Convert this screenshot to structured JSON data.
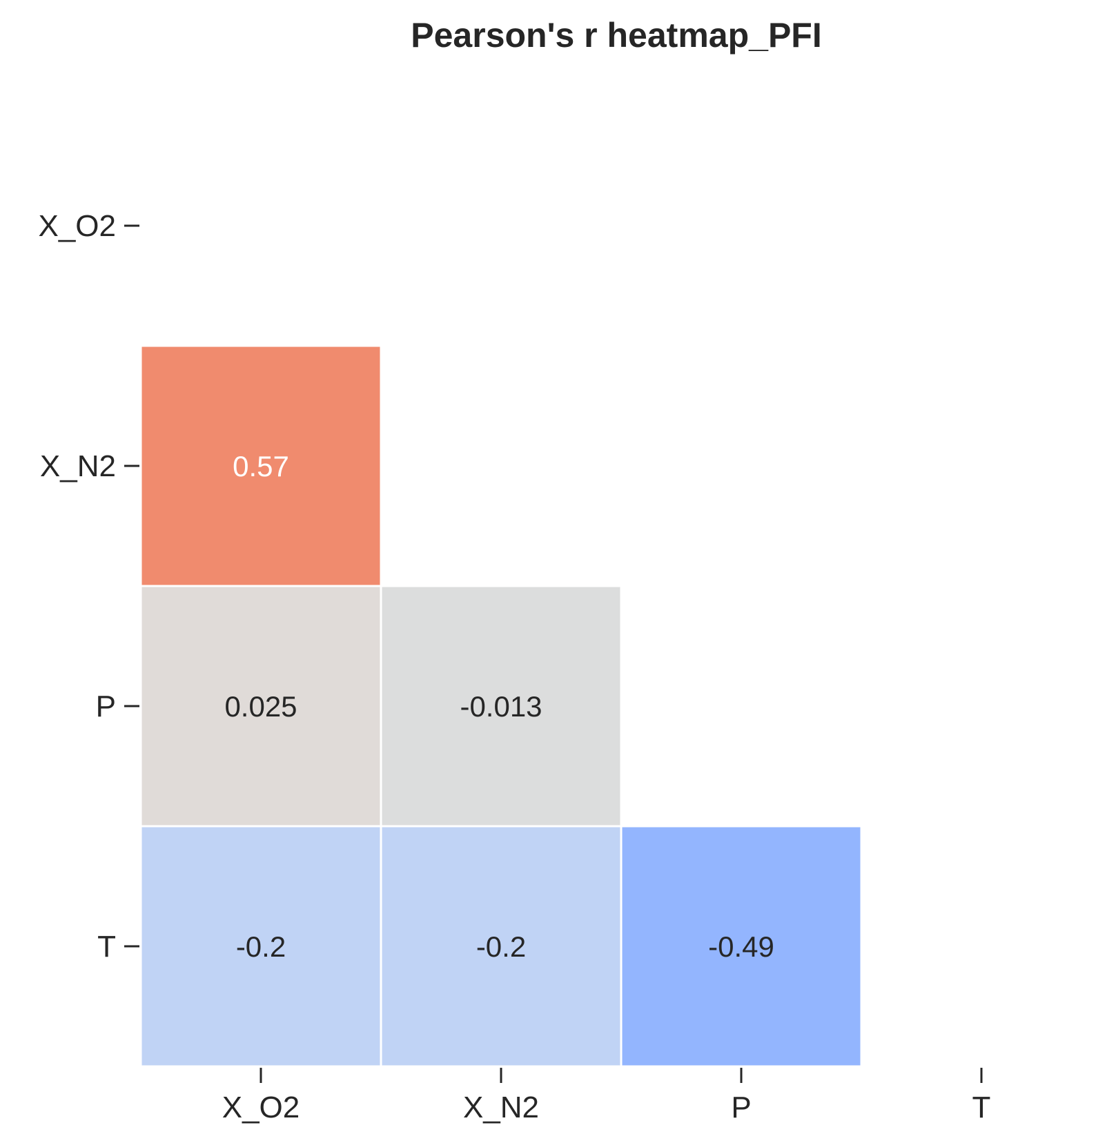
{
  "chart_data": {
    "type": "heatmap",
    "title": "Pearson's r heatmap_PFI",
    "xlabel": "",
    "ylabel": "",
    "x_categories": [
      "X_O2",
      "X_N2",
      "P",
      "T"
    ],
    "y_categories": [
      "X_O2",
      "X_N2",
      "P",
      "T"
    ],
    "mask": "upper-triangle-including-diagonal",
    "colormap": "coolwarm",
    "vmin": -1,
    "vmax": 1,
    "colorbar": false,
    "cells": [
      {
        "row": 1,
        "col": 0,
        "value": 0.57,
        "label": "0.57",
        "color": "#f08b6e",
        "text_color": "#ffffff"
      },
      {
        "row": 2,
        "col": 0,
        "value": 0.025,
        "label": "0.025",
        "color": "#e0dbd8",
        "text_color": "#262626"
      },
      {
        "row": 2,
        "col": 1,
        "value": -0.013,
        "label": "-0.013",
        "color": "#dcdddd",
        "text_color": "#262626"
      },
      {
        "row": 3,
        "col": 0,
        "value": -0.2,
        "label": "-0.2",
        "color": "#c0d3f5",
        "text_color": "#262626"
      },
      {
        "row": 3,
        "col": 1,
        "value": -0.2,
        "label": "-0.2",
        "color": "#c0d3f5",
        "text_color": "#262626"
      },
      {
        "row": 3,
        "col": 2,
        "value": -0.49,
        "label": "-0.49",
        "color": "#93b5fe",
        "text_color": "#262626"
      }
    ]
  }
}
